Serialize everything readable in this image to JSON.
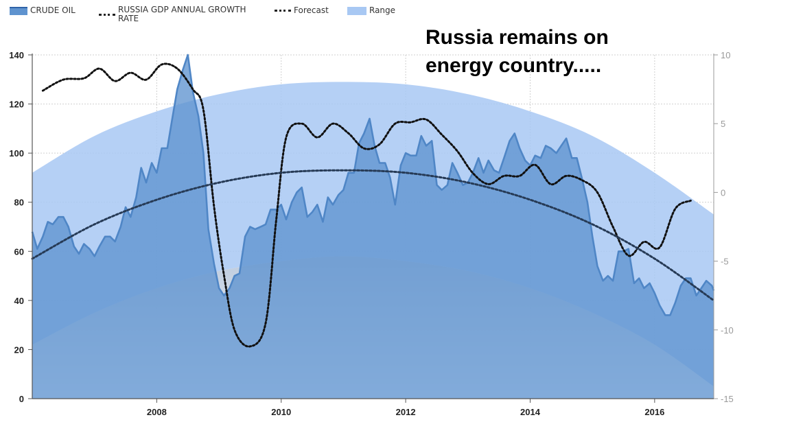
{
  "headline": {
    "line1": "Russia remains on",
    "line2": "energy country....."
  },
  "legend": {
    "crude": "CRUDE OIL",
    "gdp_line1": "RUSSIA GDP ANNUAL GROWTH",
    "gdp_line2": "RATE",
    "forecast": "Forecast",
    "range": "Range"
  },
  "colors": {
    "crude_fill": "#5f93cf",
    "crude_line": "#4f86c6",
    "range_fill": "#a8c8f3",
    "lower_band_top": "#b9c8dc",
    "dotted": "#111111",
    "grid": "#cfcfcf"
  },
  "chart_data": {
    "type": "area",
    "x_axis": {
      "ticks": [
        "2008",
        "2010",
        "2012",
        "2014",
        "2016"
      ],
      "range": [
        2006.0,
        2016.95
      ]
    },
    "y_left": {
      "ticks": [
        "0",
        "20",
        "40",
        "60",
        "80",
        "100",
        "120",
        "140"
      ],
      "range": [
        0,
        140
      ]
    },
    "y_right": {
      "ticks": [
        "-15",
        "-10",
        "-5",
        "0",
        "5",
        "10"
      ],
      "range": [
        -15,
        10
      ]
    },
    "grid": true,
    "series": [
      {
        "name": "CRUDE OIL",
        "axis": "left",
        "kind": "area",
        "points": [
          [
            2006.0,
            68
          ],
          [
            2006.08,
            61
          ],
          [
            2006.17,
            66
          ],
          [
            2006.25,
            72
          ],
          [
            2006.33,
            71
          ],
          [
            2006.42,
            74
          ],
          [
            2006.5,
            74
          ],
          [
            2006.58,
            70
          ],
          [
            2006.67,
            62
          ],
          [
            2006.75,
            59
          ],
          [
            2006.83,
            63
          ],
          [
            2006.92,
            61
          ],
          [
            2007.0,
            58
          ],
          [
            2007.08,
            62
          ],
          [
            2007.17,
            66
          ],
          [
            2007.25,
            66
          ],
          [
            2007.33,
            64
          ],
          [
            2007.42,
            70
          ],
          [
            2007.5,
            78
          ],
          [
            2007.58,
            74
          ],
          [
            2007.67,
            82
          ],
          [
            2007.75,
            94
          ],
          [
            2007.83,
            88
          ],
          [
            2007.92,
            96
          ],
          [
            2008.0,
            92
          ],
          [
            2008.08,
            102
          ],
          [
            2008.17,
            102
          ],
          [
            2008.25,
            114
          ],
          [
            2008.33,
            126
          ],
          [
            2008.42,
            134
          ],
          [
            2008.5,
            140
          ],
          [
            2008.58,
            125
          ],
          [
            2008.67,
            115
          ],
          [
            2008.75,
            100
          ],
          [
            2008.83,
            69
          ],
          [
            2008.92,
            55
          ],
          [
            2009.0,
            45
          ],
          [
            2009.08,
            42
          ],
          [
            2009.17,
            45
          ],
          [
            2009.25,
            50
          ],
          [
            2009.33,
            51
          ],
          [
            2009.42,
            66
          ],
          [
            2009.5,
            70
          ],
          [
            2009.58,
            69
          ],
          [
            2009.67,
            70
          ],
          [
            2009.75,
            71
          ],
          [
            2009.83,
            77
          ],
          [
            2009.92,
            77
          ],
          [
            2010.0,
            79
          ],
          [
            2010.08,
            73
          ],
          [
            2010.17,
            80
          ],
          [
            2010.25,
            84
          ],
          [
            2010.33,
            86
          ],
          [
            2010.42,
            74
          ],
          [
            2010.5,
            76
          ],
          [
            2010.58,
            79
          ],
          [
            2010.67,
            72
          ],
          [
            2010.75,
            82
          ],
          [
            2010.83,
            79
          ],
          [
            2010.92,
            83
          ],
          [
            2011.0,
            85
          ],
          [
            2011.08,
            92
          ],
          [
            2011.17,
            92
          ],
          [
            2011.25,
            104
          ],
          [
            2011.33,
            108
          ],
          [
            2011.42,
            114
          ],
          [
            2011.5,
            103
          ],
          [
            2011.58,
            96
          ],
          [
            2011.67,
            96
          ],
          [
            2011.75,
            90
          ],
          [
            2011.83,
            79
          ],
          [
            2011.92,
            95
          ],
          [
            2012.0,
            100
          ],
          [
            2012.08,
            99
          ],
          [
            2012.17,
            99
          ],
          [
            2012.25,
            107
          ],
          [
            2012.33,
            103
          ],
          [
            2012.42,
            105
          ],
          [
            2012.5,
            87
          ],
          [
            2012.58,
            85
          ],
          [
            2012.67,
            87
          ],
          [
            2012.75,
            96
          ],
          [
            2012.83,
            92
          ],
          [
            2012.92,
            87
          ],
          [
            2013.0,
            88
          ],
          [
            2013.08,
            92
          ],
          [
            2013.17,
            98
          ],
          [
            2013.25,
            92
          ],
          [
            2013.33,
            97
          ],
          [
            2013.42,
            93
          ],
          [
            2013.5,
            92
          ],
          [
            2013.58,
            98
          ],
          [
            2013.67,
            105
          ],
          [
            2013.75,
            108
          ],
          [
            2013.83,
            102
          ],
          [
            2013.92,
            97
          ],
          [
            2014.0,
            95
          ],
          [
            2014.08,
            99
          ],
          [
            2014.17,
            98
          ],
          [
            2014.25,
            103
          ],
          [
            2014.33,
            102
          ],
          [
            2014.42,
            100
          ],
          [
            2014.5,
            103
          ],
          [
            2014.58,
            106
          ],
          [
            2014.67,
            98
          ],
          [
            2014.75,
            98
          ],
          [
            2014.83,
            90
          ],
          [
            2014.92,
            80
          ],
          [
            2015.0,
            66
          ],
          [
            2015.08,
            54
          ],
          [
            2015.17,
            48
          ],
          [
            2015.25,
            50
          ],
          [
            2015.33,
            48
          ],
          [
            2015.42,
            60
          ],
          [
            2015.5,
            60
          ],
          [
            2015.58,
            61
          ],
          [
            2015.67,
            47
          ],
          [
            2015.75,
            49
          ],
          [
            2015.83,
            45
          ],
          [
            2015.92,
            47
          ],
          [
            2016.0,
            43
          ],
          [
            2016.08,
            38
          ],
          [
            2016.17,
            34
          ],
          [
            2016.25,
            34
          ],
          [
            2016.33,
            39
          ],
          [
            2016.42,
            46
          ],
          [
            2016.5,
            49
          ],
          [
            2016.58,
            49
          ],
          [
            2016.67,
            42
          ],
          [
            2016.75,
            45
          ],
          [
            2016.83,
            48
          ],
          [
            2016.92,
            46
          ],
          [
            2016.95,
            44
          ]
        ]
      },
      {
        "name": "RUSSIA GDP ANNUAL GROWTH RATE",
        "axis": "right",
        "kind": "dotted-line",
        "points": [
          [
            2006.17,
            7.4
          ],
          [
            2006.5,
            8.2
          ],
          [
            2006.83,
            8.3
          ],
          [
            2007.08,
            9.0
          ],
          [
            2007.33,
            8.1
          ],
          [
            2007.58,
            8.7
          ],
          [
            2007.83,
            8.2
          ],
          [
            2008.08,
            9.3
          ],
          [
            2008.33,
            9.0
          ],
          [
            2008.58,
            7.5
          ],
          [
            2008.75,
            6.0
          ],
          [
            2008.92,
            -1.0
          ],
          [
            2009.08,
            -6.0
          ],
          [
            2009.25,
            -10.0
          ],
          [
            2009.5,
            -11.2
          ],
          [
            2009.75,
            -9.5
          ],
          [
            2009.92,
            -2.0
          ],
          [
            2010.08,
            4.0
          ],
          [
            2010.33,
            5.0
          ],
          [
            2010.58,
            4.0
          ],
          [
            2010.83,
            5.0
          ],
          [
            2011.08,
            4.3
          ],
          [
            2011.33,
            3.2
          ],
          [
            2011.58,
            3.5
          ],
          [
            2011.83,
            5.0
          ],
          [
            2012.08,
            5.1
          ],
          [
            2012.33,
            5.3
          ],
          [
            2012.58,
            4.2
          ],
          [
            2012.83,
            3.0
          ],
          [
            2013.08,
            1.4
          ],
          [
            2013.33,
            0.6
          ],
          [
            2013.58,
            1.2
          ],
          [
            2013.83,
            1.2
          ],
          [
            2014.08,
            2.0
          ],
          [
            2014.33,
            0.6
          ],
          [
            2014.58,
            1.2
          ],
          [
            2014.83,
            0.9
          ],
          [
            2015.08,
            0.0
          ],
          [
            2015.33,
            -2.5
          ],
          [
            2015.58,
            -4.6
          ],
          [
            2015.83,
            -3.6
          ],
          [
            2016.08,
            -4.0
          ],
          [
            2016.33,
            -1.2
          ],
          [
            2016.58,
            -0.6
          ]
        ]
      },
      {
        "name": "Forecast",
        "axis": "left",
        "kind": "dotted-curve",
        "points": [
          [
            2006.0,
            57
          ],
          [
            2007.0,
            71
          ],
          [
            2008.0,
            81
          ],
          [
            2009.0,
            88
          ],
          [
            2010.0,
            92
          ],
          [
            2011.0,
            93
          ],
          [
            2012.0,
            92
          ],
          [
            2013.0,
            88
          ],
          [
            2014.0,
            81
          ],
          [
            2015.0,
            71
          ],
          [
            2016.0,
            57
          ],
          [
            2016.95,
            40
          ]
        ]
      },
      {
        "name": "Range",
        "axis": "left",
        "kind": "band",
        "upper": [
          [
            2006.0,
            92
          ],
          [
            2007.0,
            107
          ],
          [
            2008.0,
            117
          ],
          [
            2009.0,
            124
          ],
          [
            2010.0,
            128
          ],
          [
            2011.0,
            129
          ],
          [
            2012.0,
            128
          ],
          [
            2013.0,
            124
          ],
          [
            2014.0,
            117
          ],
          [
            2015.0,
            107
          ],
          [
            2016.0,
            92
          ],
          [
            2016.95,
            75
          ]
        ],
        "lower": [
          [
            2006.0,
            22
          ],
          [
            2007.0,
            35
          ],
          [
            2008.0,
            45
          ],
          [
            2009.0,
            52
          ],
          [
            2010.0,
            56
          ],
          [
            2011.0,
            58
          ],
          [
            2012.0,
            56
          ],
          [
            2013.0,
            52
          ],
          [
            2014.0,
            45
          ],
          [
            2015.0,
            35
          ],
          [
            2016.0,
            22
          ],
          [
            2016.95,
            5
          ]
        ]
      }
    ]
  }
}
